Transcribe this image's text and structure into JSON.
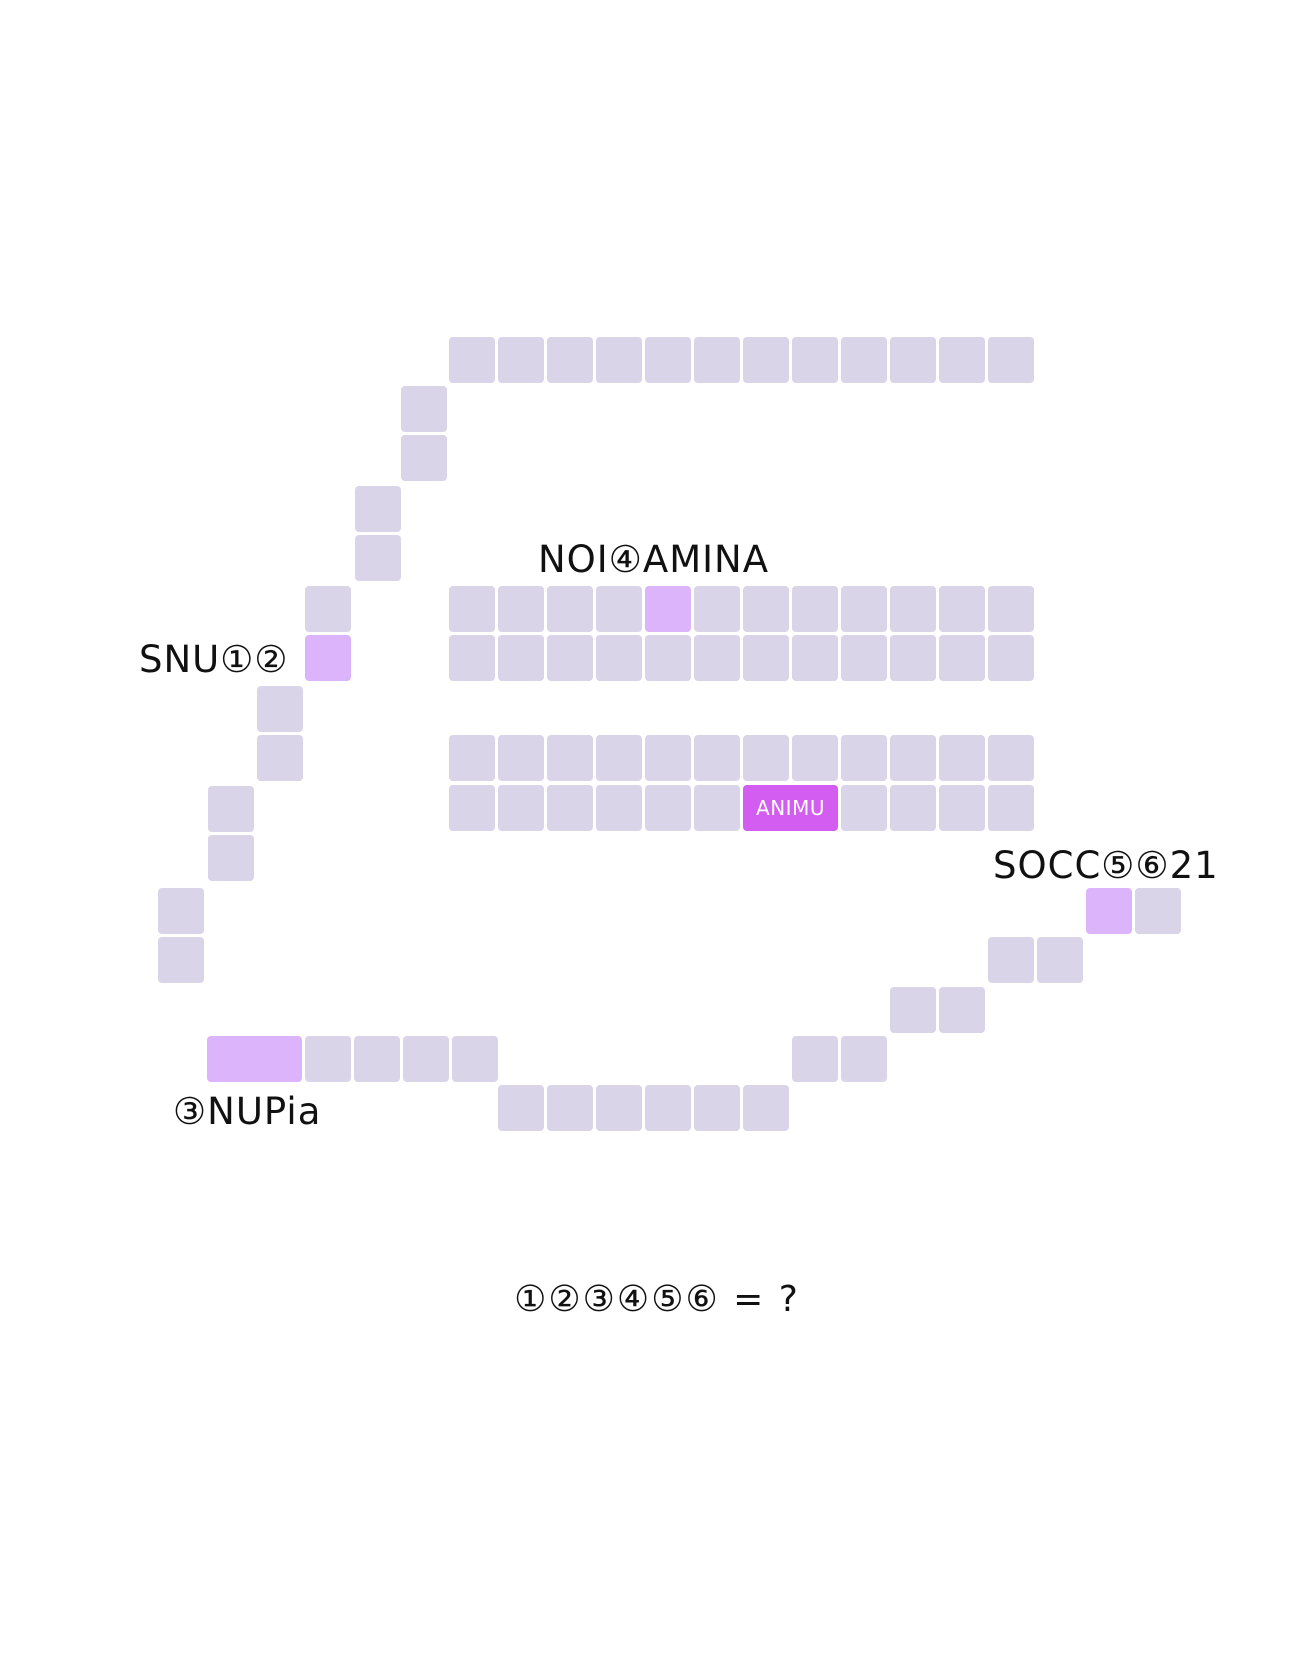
{
  "puzzle": {
    "clues": {
      "snu": "SNU①②",
      "noitamina": "NOI④AMINA",
      "socc": "SOCC⑤⑥21",
      "nupia": "③NUPia"
    },
    "selected_cell_text": "ANIMU",
    "equation": "①②③④⑤⑥ = ?"
  },
  "colors": {
    "cell": "#d9d4e8",
    "highlight": "#dcb4fb",
    "selected": "#d25df0",
    "text": "#111111",
    "background": "#ffffff"
  }
}
